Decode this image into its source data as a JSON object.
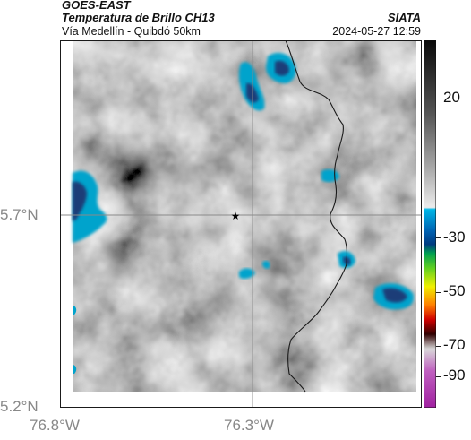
{
  "header": {
    "satellite": "GOES-EAST",
    "product": "Temperatura de Brillo CH13",
    "region": "Vía Medellín - Quibdó 50km",
    "agency": "SIATA",
    "datetime": "2024-05-27 12:59"
  },
  "axes": {
    "lat_ticks": [
      "5.7°N",
      "5.2°N"
    ],
    "lon_ticks": [
      "76.8°W",
      "76.3°W"
    ]
  },
  "colorbar": {
    "tick_labels": [
      "20",
      "-30",
      "-50",
      "-70",
      "-90"
    ]
  },
  "marker": {
    "symbol": "★"
  },
  "colors": {
    "cold_cloud": "#00a3cc",
    "deep_cloud": "#1f3c78",
    "border_line": "#1a1a1a",
    "grid_line": "#8a8a8a"
  }
}
